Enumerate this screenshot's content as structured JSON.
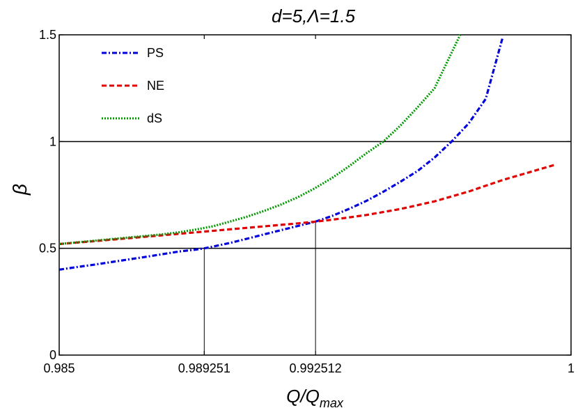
{
  "chart_data": {
    "type": "line",
    "title": "d=5,Λ=1.5",
    "xlabel_main": "Q/Q",
    "xlabel_sub": "max",
    "ylabel": "β",
    "xlim": [
      0.985,
      1.0
    ],
    "ylim": [
      0,
      1.5
    ],
    "x_ticks": [
      {
        "value": 0.985,
        "label": "0.985"
      },
      {
        "value": 0.989251,
        "label": "0.989251"
      },
      {
        "value": 0.992512,
        "label": "0.992512"
      },
      {
        "value": 1.0,
        "label": "1"
      }
    ],
    "y_ticks": [
      {
        "value": 0,
        "label": "0"
      },
      {
        "value": 0.5,
        "label": "0.5"
      },
      {
        "value": 1,
        "label": "1"
      },
      {
        "value": 1.5,
        "label": "1.5"
      }
    ],
    "reference_lines_y": [
      0.5,
      1.0
    ],
    "drop_lines": [
      {
        "x": 0.989251,
        "y": 0.5
      },
      {
        "x": 0.992512,
        "y": 0.625
      }
    ],
    "legend_position": "top-left",
    "series": [
      {
        "name": "PS",
        "color": "#0000dd",
        "dash": "dash-dot",
        "x": [
          0.985,
          0.9855,
          0.986,
          0.9865,
          0.987,
          0.9875,
          0.988,
          0.9885,
          0.989,
          0.989251,
          0.9895,
          0.99,
          0.9905,
          0.991,
          0.9915,
          0.992,
          0.992512,
          0.993,
          0.9935,
          0.994,
          0.9945,
          0.995,
          0.9955,
          0.996,
          0.9965,
          0.997,
          0.9975,
          0.998
        ],
        "y": [
          0.4,
          0.412,
          0.423,
          0.435,
          0.447,
          0.459,
          0.472,
          0.485,
          0.494,
          0.5,
          0.508,
          0.525,
          0.545,
          0.565,
          0.585,
          0.605,
          0.625,
          0.652,
          0.685,
          0.722,
          0.765,
          0.812,
          0.862,
          0.925,
          1.0,
          1.085,
          1.2,
          1.49
        ]
      },
      {
        "name": "NE",
        "color": "#e00000",
        "dash": "dash",
        "x": [
          0.985,
          0.986,
          0.987,
          0.988,
          0.989,
          0.99,
          0.991,
          0.992,
          0.992512,
          0.993,
          0.994,
          0.995,
          0.996,
          0.997,
          0.998,
          0.9995
        ],
        "y": [
          0.52,
          0.533,
          0.547,
          0.561,
          0.575,
          0.589,
          0.603,
          0.617,
          0.625,
          0.634,
          0.656,
          0.684,
          0.72,
          0.766,
          0.82,
          0.89
        ]
      },
      {
        "name": "dS",
        "color": "#009900",
        "dash": "dot",
        "x": [
          0.985,
          0.986,
          0.987,
          0.988,
          0.9885,
          0.989,
          0.9895,
          0.99,
          0.9905,
          0.991,
          0.9915,
          0.992,
          0.9925,
          0.993,
          0.9935,
          0.994,
          0.9945,
          0.995,
          0.9955,
          0.996,
          0.99675
        ],
        "y": [
          0.52,
          0.535,
          0.55,
          0.565,
          0.575,
          0.588,
          0.603,
          0.625,
          0.648,
          0.675,
          0.705,
          0.74,
          0.782,
          0.83,
          0.885,
          0.945,
          1.0,
          1.075,
          1.16,
          1.25,
          1.5
        ]
      }
    ]
  }
}
